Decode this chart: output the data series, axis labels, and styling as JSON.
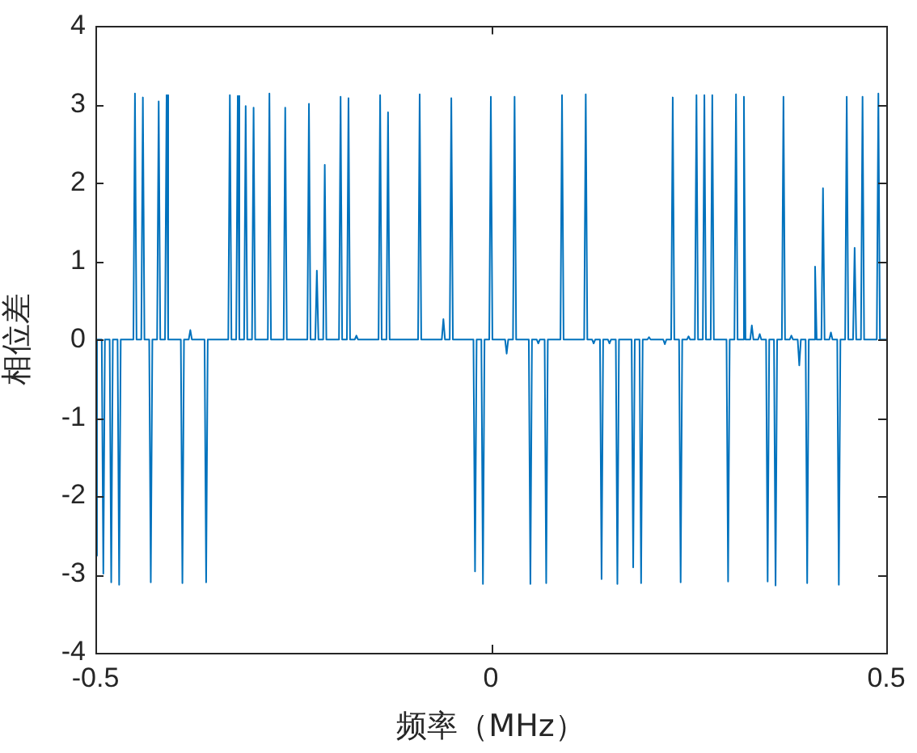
{
  "chart_data": {
    "type": "line",
    "xlabel": "频率（MHz）",
    "ylabel": "相位差",
    "xlim": [
      -0.5,
      0.5
    ],
    "xticks": [
      {
        "value": -0.5,
        "label": "-0.5"
      },
      0,
      {
        "value": 0.5,
        "label": "0.5"
      }
    ],
    "ylim": [
      -4,
      4
    ],
    "yticks": [
      -4,
      -3,
      -2,
      -1,
      0,
      1,
      2,
      3,
      4
    ],
    "grid": false,
    "legend": false,
    "marker": "none",
    "line_style": "solid",
    "series": [
      {
        "color": "#0072bd",
        "x": [
          -0.5,
          -0.498,
          -0.492,
          -0.49,
          -0.488,
          -0.482,
          -0.48,
          -0.478,
          -0.472,
          -0.47,
          -0.468,
          -0.452,
          -0.45,
          -0.448,
          -0.442,
          -0.44,
          -0.438,
          -0.432,
          -0.43,
          -0.428,
          -0.422,
          -0.42,
          -0.418,
          -0.412,
          -0.41,
          -0.408,
          -0.392,
          -0.39,
          -0.388,
          -0.382,
          -0.38,
          -0.378,
          -0.362,
          -0.36,
          -0.358,
          -0.332,
          -0.33,
          -0.328,
          -0.322,
          -0.32,
          -0.318,
          -0.312,
          -0.31,
          -0.308,
          -0.302,
          -0.3,
          -0.298,
          -0.282,
          -0.28,
          -0.278,
          -0.262,
          -0.26,
          -0.258,
          -0.232,
          -0.23,
          -0.228,
          -0.222,
          -0.22,
          -0.218,
          -0.212,
          -0.21,
          -0.208,
          -0.192,
          -0.19,
          -0.188,
          -0.182,
          -0.18,
          -0.178,
          -0.172,
          -0.17,
          -0.168,
          -0.142,
          -0.14,
          -0.138,
          -0.132,
          -0.13,
          -0.128,
          -0.092,
          -0.09,
          -0.088,
          -0.062,
          -0.06,
          -0.058,
          -0.052,
          -0.05,
          -0.048,
          -0.022,
          -0.02,
          -0.018,
          -0.012,
          -0.01,
          -0.008,
          -0.002,
          0,
          0.002,
          0.018,
          0.02,
          0.022,
          0.028,
          0.03,
          0.032,
          0.048,
          0.05,
          0.052,
          0.058,
          0.06,
          0.062,
          0.068,
          0.07,
          0.072,
          0.088,
          0.09,
          0.092,
          0.118,
          0.12,
          0.122,
          0.128,
          0.13,
          0.132,
          0.138,
          0.14,
          0.142,
          0.148,
          0.15,
          0.152,
          0.158,
          0.16,
          0.162,
          0.178,
          0.18,
          0.182,
          0.188,
          0.19,
          0.192,
          0.198,
          0.2,
          0.202,
          0.218,
          0.22,
          0.222,
          0.228,
          0.23,
          0.232,
          0.238,
          0.24,
          0.242,
          0.248,
          0.25,
          0.252,
          0.258,
          0.26,
          0.262,
          0.268,
          0.27,
          0.272,
          0.278,
          0.28,
          0.282,
          0.298,
          0.3,
          0.302,
          0.308,
          0.31,
          0.312,
          0.318,
          0.32,
          0.322,
          0.328,
          0.33,
          0.332,
          0.338,
          0.34,
          0.342,
          0.348,
          0.35,
          0.352,
          0.358,
          0.36,
          0.362,
          0.368,
          0.37,
          0.372,
          0.378,
          0.38,
          0.382,
          0.388,
          0.39,
          0.392,
          0.398,
          0.4,
          0.402,
          0.408,
          0.41,
          0.412,
          0.418,
          0.42,
          0.422,
          0.428,
          0.43,
          0.432,
          0.438,
          0.44,
          0.442,
          0.448,
          0.45,
          0.452,
          0.458,
          0.46,
          0.462,
          0.468,
          0.47,
          0.472,
          0.488,
          0.49,
          0.492,
          0.5
        ],
        "values": [
          -2.76,
          0,
          0,
          -2.99,
          0,
          0,
          -3.1,
          0,
          0,
          -3.13,
          0,
          0,
          3.14,
          0,
          0,
          3.09,
          0,
          0,
          -3.1,
          0,
          0,
          3.04,
          0,
          0,
          3.12,
          0,
          0,
          -3.11,
          0,
          0,
          0.12,
          0,
          0,
          -3.1,
          0,
          0,
          3.12,
          0,
          0,
          3.11,
          0,
          0,
          2.98,
          0,
          0,
          2.96,
          0,
          0,
          3.14,
          0,
          0,
          2.96,
          0,
          0,
          3.01,
          0,
          0,
          0.88,
          0,
          0,
          2.23,
          0,
          0,
          3.1,
          0,
          0,
          3.08,
          0,
          0,
          0.05,
          0,
          0,
          3.12,
          0,
          0,
          2.9,
          0,
          0,
          3.13,
          0,
          0,
          0.26,
          0,
          0,
          3.08,
          0,
          0,
          -2.96,
          0,
          0,
          -3.12,
          0,
          0,
          3.1,
          0,
          0,
          -0.18,
          0,
          0,
          3.1,
          0,
          0,
          -3.12,
          0,
          0,
          -0.05,
          0,
          0,
          -3.11,
          0,
          0,
          3.12,
          0,
          0,
          3.13,
          0,
          0,
          -0.05,
          0,
          0,
          -3.06,
          0,
          0,
          -0.05,
          0,
          0,
          -3.12,
          0,
          0,
          -2.91,
          0,
          0,
          -3.11,
          0,
          0,
          0.03,
          0,
          0,
          -0.06,
          0,
          0,
          3.09,
          0,
          0,
          -3.1,
          0,
          0,
          0.04,
          0,
          0,
          3.12,
          0,
          0,
          3.12,
          0,
          0,
          3.12,
          0,
          0,
          -3.09,
          0,
          0,
          3.13,
          0,
          0,
          3.1,
          0,
          0,
          0.18,
          0,
          0,
          0.07,
          0,
          0,
          -3.09,
          0,
          0,
          -3.14,
          0,
          0,
          3.1,
          0,
          0,
          0.05,
          0,
          0,
          -0.33,
          0,
          0,
          -3.11,
          0,
          0,
          0.93,
          0,
          0,
          1.93,
          0,
          0,
          0.09,
          0,
          0,
          -3.13,
          0,
          0,
          3.1,
          0,
          0,
          1.17,
          0,
          0,
          3.1,
          0,
          0,
          3.14,
          0,
          0
        ]
      }
    ]
  }
}
